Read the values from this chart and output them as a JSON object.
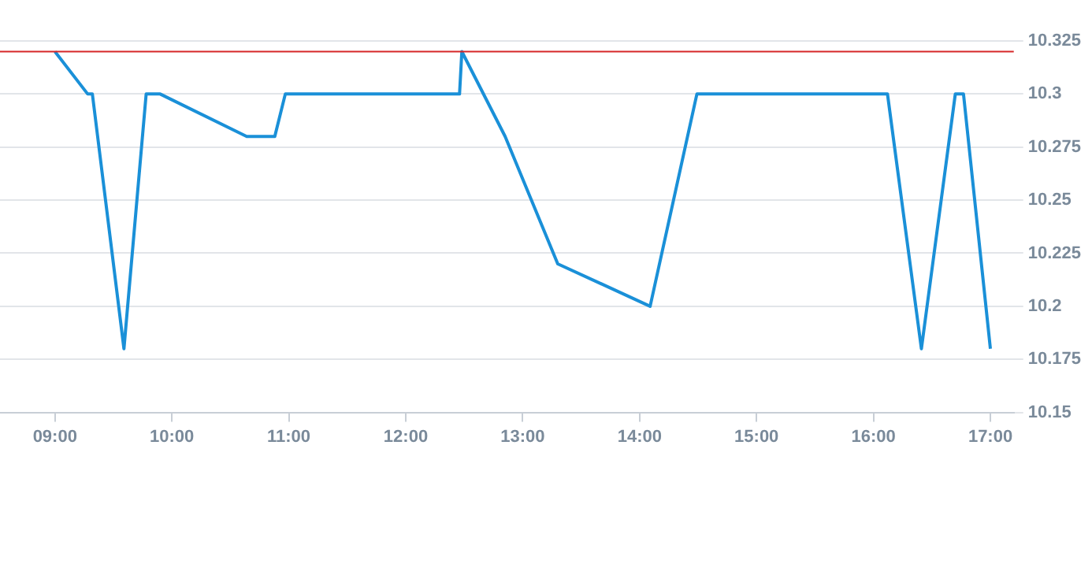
{
  "chart_data": {
    "type": "line",
    "x": [
      9.0,
      9.28,
      9.32,
      9.59,
      9.78,
      9.9,
      10.64,
      10.88,
      10.97,
      12.46,
      12.48,
      12.85,
      13.3,
      14.09,
      14.49,
      16.12,
      16.41,
      16.7,
      16.77,
      17.0
    ],
    "series": [
      {
        "color": "#1a90d8",
        "values": [
          10.32,
          10.3,
          10.3,
          10.18,
          10.3,
          10.3,
          10.28,
          10.28,
          10.3,
          10.3,
          10.32,
          10.28,
          10.22,
          10.2,
          10.3,
          10.3,
          10.18,
          10.3,
          10.3,
          10.18
        ]
      }
    ],
    "xlim": [
      8.53,
      17.2
    ],
    "xticks": [
      {
        "value": 9,
        "label": "09:00"
      },
      {
        "value": 10,
        "label": "10:00"
      },
      {
        "value": 11,
        "label": "11:00"
      },
      {
        "value": 12,
        "label": "12:00"
      },
      {
        "value": 13,
        "label": "13:00"
      },
      {
        "value": 14,
        "label": "14:00"
      },
      {
        "value": 15,
        "label": "15:00"
      },
      {
        "value": 16,
        "label": "16:00"
      },
      {
        "value": 17,
        "label": "17:00"
      }
    ],
    "ylim": [
      10.15,
      10.325
    ],
    "yticks": [
      10.15,
      {
        "value": 10.175,
        "label": "10.175"
      },
      {
        "value": 10.2,
        "label": "10.2"
      },
      {
        "value": 10.225,
        "label": "10.225"
      },
      {
        "value": 10.25,
        "label": "10.25"
      },
      {
        "value": 10.275,
        "label": "10.275"
      },
      {
        "value": 10.3,
        "label": "10.3"
      },
      {
        "value": 10.325,
        "label": "10.325"
      }
    ],
    "ref_lines": [
      {
        "axis": "y",
        "value": 10.32,
        "color": "#d62728"
      }
    ],
    "grid": "y",
    "legend": false,
    "marker": "none",
    "line_style": "solid"
  }
}
